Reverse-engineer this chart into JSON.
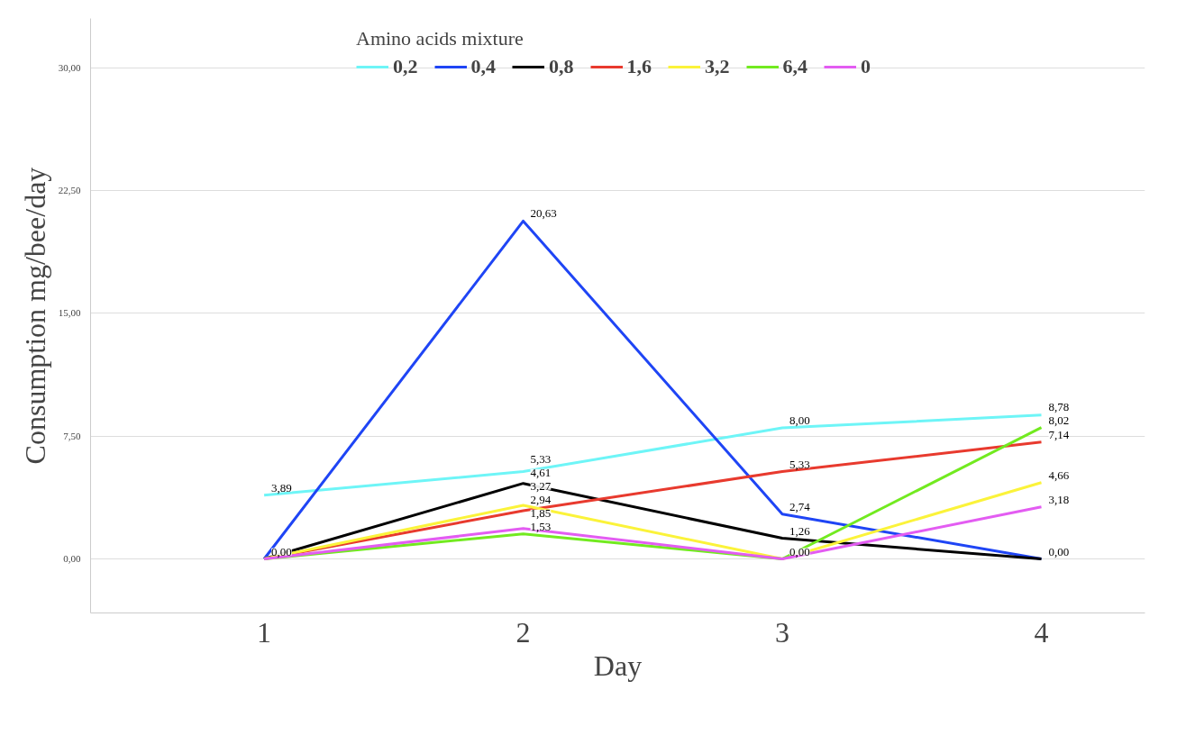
{
  "chart_data": {
    "type": "line",
    "xlabel": "Day",
    "ylabel": "Consumption mg/bee/day",
    "legend_title": "Amino acids mixture",
    "categories": [
      "1",
      "2",
      "3",
      "4"
    ],
    "ylim": [
      -3.3,
      33
    ],
    "yticks": [
      {
        "value": 0,
        "label": "0,00"
      },
      {
        "value": 7.5,
        "label": "7,50"
      },
      {
        "value": 15,
        "label": "15,00"
      },
      {
        "value": 22.5,
        "label": "22,50"
      },
      {
        "value": 30,
        "label": "30,00"
      }
    ],
    "grid": "y",
    "legend": "top",
    "marker": "none",
    "line_style": "solid",
    "series": [
      {
        "name": "0,2",
        "color": "#6ef5f7",
        "values": [
          3.89,
          5.33,
          8.0,
          8.78
        ],
        "value_labels": [
          "3,89",
          "5,33",
          "8,00",
          "8,78"
        ]
      },
      {
        "name": "0,4",
        "color": "#1f45f5",
        "values": [
          0,
          20.63,
          2.74,
          0
        ],
        "value_labels": [
          "0,00",
          "20,63",
          "2,74",
          "0,00"
        ]
      },
      {
        "name": "0,8",
        "color": "#000000",
        "values": [
          0,
          4.61,
          1.26,
          0
        ],
        "value_labels": [
          null,
          "4,61",
          "1,26",
          null
        ]
      },
      {
        "name": "1,6",
        "color": "#e83a2e",
        "values": [
          0,
          2.94,
          5.33,
          7.14
        ],
        "value_labels": [
          null,
          "2,94",
          "5,33",
          "7,14"
        ]
      },
      {
        "name": "3,2",
        "color": "#fbf33a",
        "values": [
          0,
          3.27,
          0,
          4.66
        ],
        "value_labels": [
          null,
          "3,27",
          null,
          "4,66"
        ]
      },
      {
        "name": "6,4",
        "color": "#72ea20",
        "values": [
          0,
          1.53,
          0,
          8.02
        ],
        "value_labels": [
          null,
          "1,53",
          null,
          "8,02"
        ]
      },
      {
        "name": "0",
        "color": "#e35cf2",
        "values": [
          0,
          1.85,
          0,
          3.18
        ],
        "value_labels": [
          null,
          "1,85",
          "0,00",
          "3,18"
        ]
      }
    ]
  }
}
